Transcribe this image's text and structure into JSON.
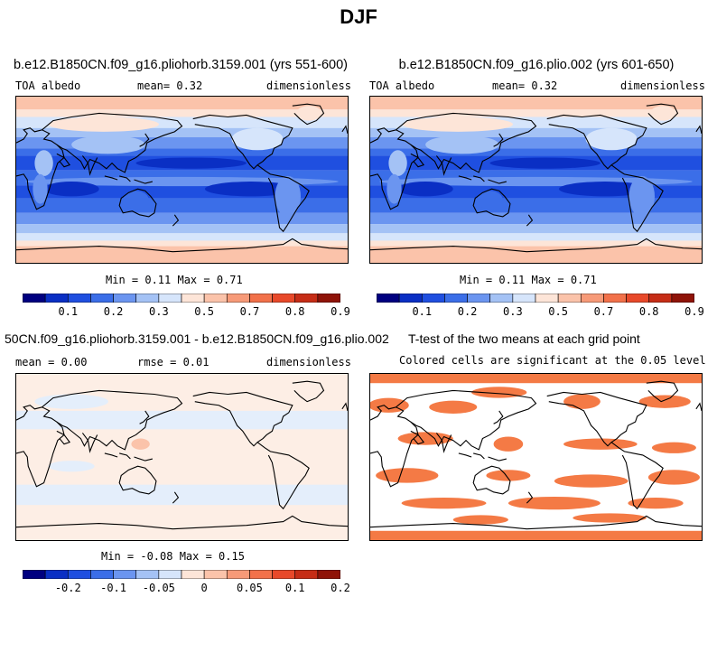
{
  "title": "DJF",
  "panels": [
    {
      "id": "p1",
      "title": "b.e12.B1850CN.f09_g16.pliohorb.3159.001 (yrs 551-600)",
      "left_label": "TOA albedo",
      "mid_label": "mean=   0.32",
      "right_label": "dimensionless",
      "stats": "Min =   0.11 Max =   0.71",
      "colorbar": "abs"
    },
    {
      "id": "p2",
      "title": "b.e12.B1850CN.f09_g16.plio.002 (yrs 601-650)",
      "left_label": "TOA albedo",
      "mid_label": "mean=   0.32",
      "right_label": "dimensionless",
      "stats": "Min =   0.11 Max =   0.71",
      "colorbar": "abs"
    },
    {
      "id": "p3",
      "title": "50CN.f09_g16.pliohorb.3159.001 - b.e12.B1850CN.f09_g16.plio.002",
      "left_label": "mean =   0.00",
      "mid_label": "rmse =   0.01",
      "right_label": "dimensionless",
      "stats": "Min =  -0.08 Max =   0.15",
      "colorbar": "diff"
    },
    {
      "id": "p4",
      "title": "T-test of the two means at each grid point",
      "subtitle": "Colored cells are significant at the 0.05 level"
    }
  ],
  "chart_data": [
    {
      "type": "heatmap",
      "title": "b.e12.B1850CN.f09_g16.pliohorb.3159.001 (yrs 551-600)",
      "variable": "TOA albedo",
      "units": "dimensionless",
      "mean": 0.32,
      "min": 0.11,
      "max": 0.71,
      "colorbar_ticks": [
        "0.1",
        "0.2",
        "0.3",
        "0.5",
        "0.7",
        "0.8",
        "0.9"
      ]
    },
    {
      "type": "heatmap",
      "title": "b.e12.B1850CN.f09_g16.plio.002 (yrs 601-650)",
      "variable": "TOA albedo",
      "units": "dimensionless",
      "mean": 0.32,
      "min": 0.11,
      "max": 0.71,
      "colorbar_ticks": [
        "0.1",
        "0.2",
        "0.3",
        "0.5",
        "0.7",
        "0.8",
        "0.9"
      ]
    },
    {
      "type": "heatmap",
      "title": "50CN.f09_g16.pliohorb.3159.001 - b.e12.B1850CN.f09_g16.plio.002",
      "units": "dimensionless",
      "mean": 0.0,
      "rmse": 0.01,
      "min": -0.08,
      "max": 0.15,
      "colorbar_ticks": [
        "-0.2",
        "-0.1",
        "-0.05",
        "0",
        "0.05",
        "0.1",
        "0.2"
      ]
    },
    {
      "type": "heatmap",
      "title": "T-test of the two means at each grid point",
      "subtitle": "Colored cells are significant at the 0.05 level",
      "significance_level": 0.05
    }
  ],
  "colors": {
    "palette": [
      "#000080",
      "#0a2fc4",
      "#1f4fe0",
      "#3b6ee8",
      "#6b95f0",
      "#a4c2f5",
      "#d6e5fb",
      "#fde5d8",
      "#fbc3aa",
      "#f79a78",
      "#f2714a",
      "#e8492a",
      "#c62d16",
      "#8f1308"
    ],
    "significant": "#f47a45",
    "coast": "#000000"
  }
}
